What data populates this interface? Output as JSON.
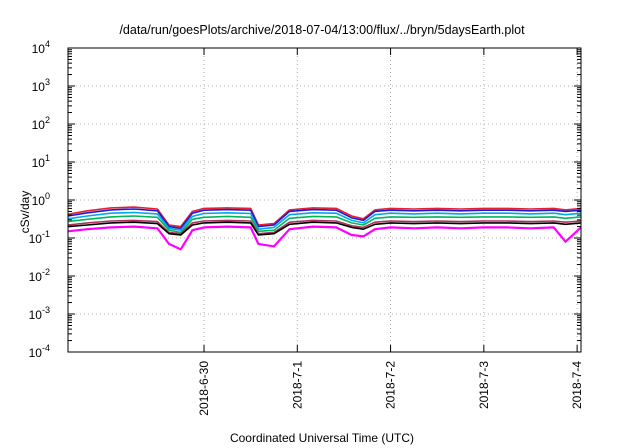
{
  "chart_data": {
    "type": "line",
    "title": "/data/run/goesPlots/archive/2018-07-04/13:00/flux/../bryn/5daysEarth.plot",
    "xlabel": "Coordinated Universal Time (UTC)",
    "ylabel": "cSv/day",
    "y_scale": "log",
    "ylim": [
      0.0001,
      10000
    ],
    "xlim": [
      "2018-06-29T01:00",
      "2018-07-04T13:00"
    ],
    "x_ticks": [
      "2018-6-30",
      "2018-7-1",
      "2018-7-2",
      "2018-7-3",
      "2018-7-4"
    ],
    "y_ticks": [
      {
        "base": "10",
        "exp": "-4"
      },
      {
        "base": "10",
        "exp": "-3"
      },
      {
        "base": "10",
        "exp": "-2"
      },
      {
        "base": "10",
        "exp": "-1"
      },
      {
        "base": "10",
        "exp": "0"
      },
      {
        "base": "10",
        "exp": "1"
      },
      {
        "base": "10",
        "exp": "2"
      },
      {
        "base": "10",
        "exp": "3"
      },
      {
        "base": "10",
        "exp": "4"
      }
    ],
    "grid": true,
    "legend": "none",
    "x": [
      "2018-06-29T01:00",
      "2018-06-29T06:00",
      "2018-06-29T12:00",
      "2018-06-29T18:00",
      "2018-06-30T00:00",
      "2018-06-30T03:00",
      "2018-06-30T06:00",
      "2018-06-30T09:00",
      "2018-06-30T12:00",
      "2018-06-30T18:00",
      "2018-07-01T00:00",
      "2018-07-01T02:00",
      "2018-07-01T06:00",
      "2018-07-01T10:00",
      "2018-07-01T16:00",
      "2018-07-01T22:00",
      "2018-07-02T02:00",
      "2018-07-02T05:00",
      "2018-07-02T08:00",
      "2018-07-02T12:00",
      "2018-07-02T18:00",
      "2018-07-03T00:00",
      "2018-07-03T06:00",
      "2018-07-03T12:00",
      "2018-07-03T18:00",
      "2018-07-04T00:00",
      "2018-07-04T06:00",
      "2018-07-04T09:00",
      "2018-07-04T13:00"
    ],
    "series": [
      {
        "color": "#e8202a",
        "values": [
          0.42,
          0.52,
          0.62,
          0.65,
          0.58,
          0.22,
          0.2,
          0.5,
          0.6,
          0.62,
          0.6,
          0.22,
          0.24,
          0.55,
          0.62,
          0.6,
          0.38,
          0.32,
          0.55,
          0.6,
          0.58,
          0.6,
          0.58,
          0.6,
          0.6,
          0.58,
          0.6,
          0.55,
          0.6
        ]
      },
      {
        "color": "#1a1adf",
        "values": [
          0.38,
          0.46,
          0.55,
          0.58,
          0.52,
          0.2,
          0.18,
          0.45,
          0.54,
          0.56,
          0.54,
          0.2,
          0.22,
          0.5,
          0.56,
          0.54,
          0.34,
          0.29,
          0.5,
          0.54,
          0.52,
          0.54,
          0.52,
          0.54,
          0.54,
          0.52,
          0.54,
          0.5,
          0.54
        ]
      },
      {
        "color": "#00a8e8",
        "values": [
          0.32,
          0.38,
          0.45,
          0.47,
          0.43,
          0.18,
          0.16,
          0.37,
          0.44,
          0.46,
          0.44,
          0.17,
          0.19,
          0.41,
          0.46,
          0.45,
          0.29,
          0.25,
          0.41,
          0.45,
          0.43,
          0.45,
          0.43,
          0.45,
          0.45,
          0.43,
          0.45,
          0.41,
          0.45
        ]
      },
      {
        "color": "#00b85a",
        "values": [
          0.27,
          0.31,
          0.36,
          0.38,
          0.35,
          0.16,
          0.14,
          0.31,
          0.35,
          0.37,
          0.35,
          0.15,
          0.16,
          0.33,
          0.37,
          0.36,
          0.25,
          0.22,
          0.33,
          0.36,
          0.35,
          0.36,
          0.35,
          0.36,
          0.36,
          0.35,
          0.36,
          0.33,
          0.36
        ]
      },
      {
        "color": "#b03060",
        "values": [
          0.22,
          0.25,
          0.28,
          0.29,
          0.27,
          0.14,
          0.13,
          0.25,
          0.28,
          0.29,
          0.28,
          0.13,
          0.14,
          0.26,
          0.29,
          0.28,
          0.21,
          0.19,
          0.26,
          0.28,
          0.27,
          0.28,
          0.27,
          0.28,
          0.28,
          0.27,
          0.28,
          0.26,
          0.28
        ]
      },
      {
        "color": "#000000",
        "values": [
          0.2,
          0.22,
          0.25,
          0.26,
          0.24,
          0.13,
          0.12,
          0.22,
          0.25,
          0.26,
          0.25,
          0.12,
          0.13,
          0.23,
          0.26,
          0.25,
          0.19,
          0.17,
          0.23,
          0.25,
          0.24,
          0.25,
          0.24,
          0.25,
          0.25,
          0.24,
          0.25,
          0.23,
          0.25
        ]
      },
      {
        "color": "#ff00ff",
        "values": [
          0.15,
          0.17,
          0.19,
          0.2,
          0.18,
          0.07,
          0.05,
          0.16,
          0.19,
          0.2,
          0.19,
          0.07,
          0.06,
          0.17,
          0.2,
          0.19,
          0.12,
          0.11,
          0.17,
          0.19,
          0.18,
          0.19,
          0.18,
          0.19,
          0.19,
          0.18,
          0.19,
          0.08,
          0.19
        ]
      }
    ]
  }
}
